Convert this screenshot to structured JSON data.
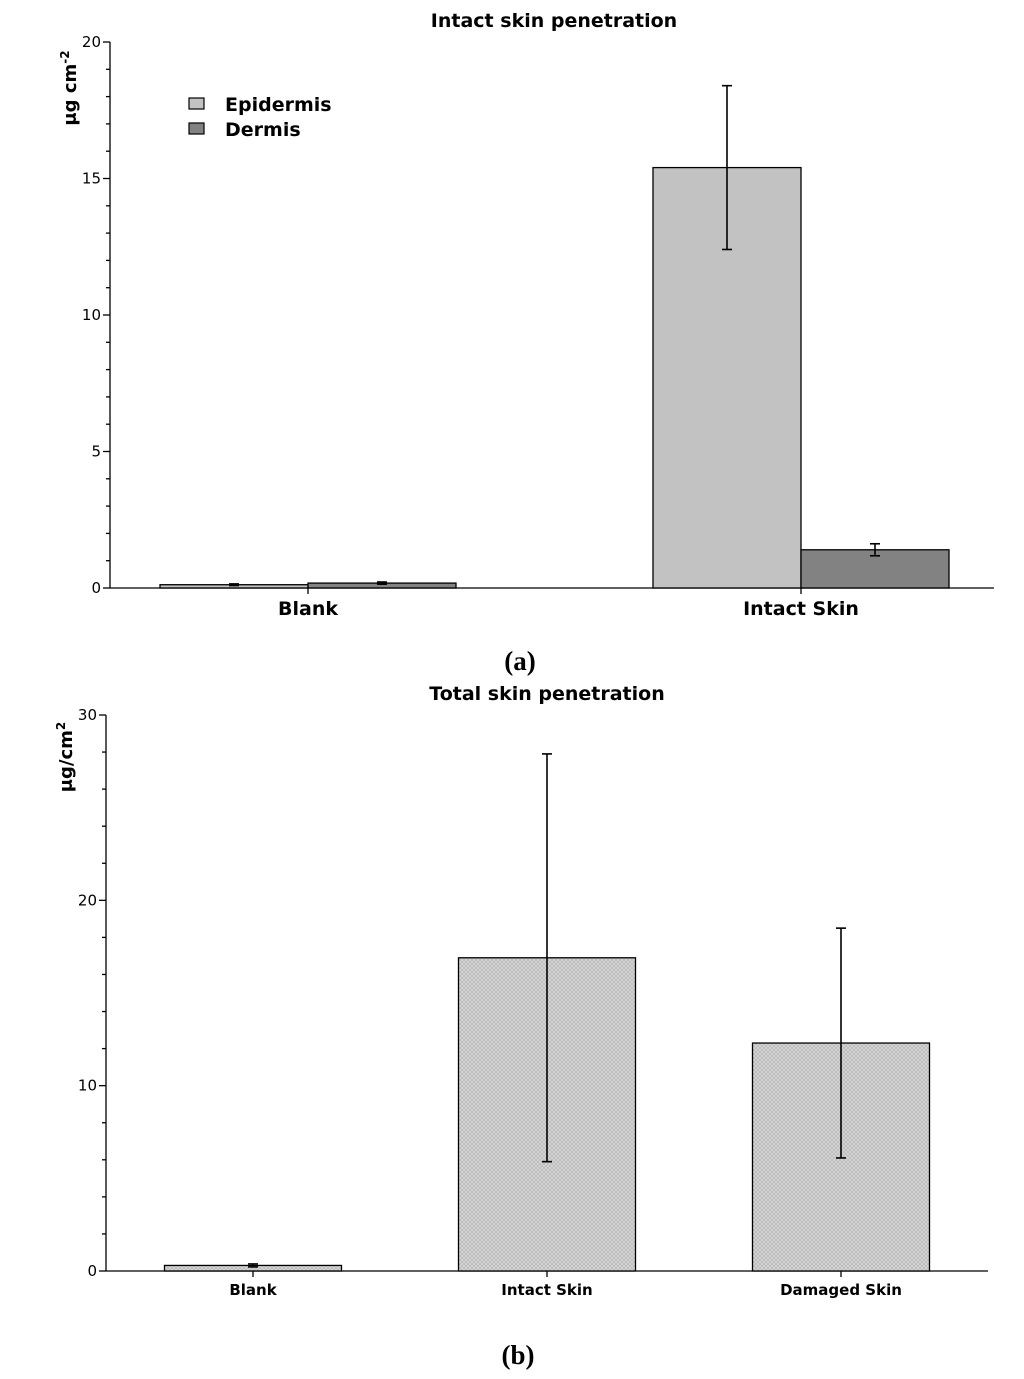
{
  "chart_data": [
    {
      "panel_label": "(a)",
      "type": "bar",
      "title": "Intact skin penetration",
      "ylabel": "μg cm",
      "ylabel_sup": "-2",
      "xlabel": "",
      "ylim": [
        0,
        20
      ],
      "yticks": [
        0,
        5,
        10,
        15,
        20
      ],
      "categories": [
        "Blank",
        "Intact Skin"
      ],
      "legend_position": "top-left",
      "series": [
        {
          "name": "Epidermis",
          "color": "#c2c2c2",
          "values": [
            0.12,
            15.4
          ],
          "errors": [
            0.03,
            3.0
          ]
        },
        {
          "name": "Dermis",
          "color": "#828282",
          "values": [
            0.18,
            1.4
          ],
          "errors": [
            0.04,
            0.22
          ]
        }
      ]
    },
    {
      "panel_label": "(b)",
      "type": "bar",
      "title": "Total skin penetration",
      "ylabel": "μg/cm",
      "ylabel_sup": "2",
      "xlabel": "",
      "ylim": [
        0,
        30
      ],
      "yticks": [
        0,
        10,
        20,
        30
      ],
      "categories": [
        "Blank",
        "Intact Skin",
        "Damaged Skin"
      ],
      "series": [
        {
          "color": "#d6d6d6",
          "pattern": "crosshatch",
          "values": [
            0.3,
            16.9,
            12.3
          ],
          "errors": [
            0.08,
            11.0,
            6.2
          ]
        }
      ]
    }
  ]
}
